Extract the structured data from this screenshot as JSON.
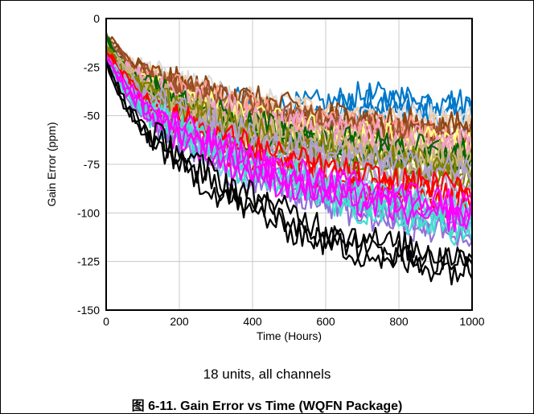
{
  "chart_data": {
    "type": "line",
    "title": "",
    "subtitle": "18 units, all channels",
    "caption": "图 6-11. Gain Error vs Time (WQFN Package)",
    "xlabel": "Time (Hours)",
    "ylabel": "Gain Error (ppm)",
    "xlim": [
      0,
      1000
    ],
    "ylim": [
      -150,
      0
    ],
    "xticks": [
      0,
      200,
      400,
      600,
      800,
      1000
    ],
    "yticks": [
      0,
      -25,
      -50,
      -75,
      -100,
      -125,
      -150
    ],
    "grid": true,
    "series_count": 54,
    "series": [
      {
        "color": "#0077c8",
        "values": [
          [
            0,
            -12
          ],
          [
            50,
            -22
          ],
          [
            100,
            -30
          ],
          [
            200,
            -38
          ],
          [
            300,
            -44
          ],
          [
            400,
            -48
          ],
          [
            500,
            -50
          ],
          [
            600,
            -48
          ],
          [
            700,
            -44
          ],
          [
            800,
            -45
          ],
          [
            900,
            -46
          ],
          [
            1000,
            -48
          ]
        ]
      },
      {
        "color": "#dcdcdc",
        "values": [
          [
            0,
            -10
          ],
          [
            50,
            -20
          ],
          [
            100,
            -27
          ],
          [
            200,
            -35
          ],
          [
            300,
            -42
          ],
          [
            400,
            -46
          ],
          [
            500,
            -50
          ],
          [
            600,
            -52
          ],
          [
            700,
            -54
          ],
          [
            800,
            -54
          ],
          [
            900,
            -55
          ],
          [
            1000,
            -56
          ]
        ]
      },
      {
        "color": "#f5c89a",
        "values": [
          [
            0,
            -12
          ],
          [
            50,
            -22
          ],
          [
            100,
            -29
          ],
          [
            200,
            -37
          ],
          [
            300,
            -43
          ],
          [
            400,
            -47
          ],
          [
            500,
            -51
          ],
          [
            600,
            -54
          ],
          [
            700,
            -56
          ],
          [
            800,
            -58
          ],
          [
            900,
            -60
          ],
          [
            1000,
            -61
          ]
        ]
      },
      {
        "color": "#8b4513",
        "values": [
          [
            0,
            -8
          ],
          [
            50,
            -20
          ],
          [
            100,
            -28
          ],
          [
            200,
            -36
          ],
          [
            300,
            -42
          ],
          [
            400,
            -46
          ],
          [
            500,
            -50
          ],
          [
            600,
            -53
          ],
          [
            700,
            -55
          ],
          [
            800,
            -57
          ],
          [
            900,
            -59
          ],
          [
            1000,
            -60
          ]
        ]
      },
      {
        "color": "#ff9a8a",
        "values": [
          [
            0,
            -14
          ],
          [
            50,
            -24
          ],
          [
            100,
            -31
          ],
          [
            200,
            -39
          ],
          [
            300,
            -45
          ],
          [
            400,
            -50
          ],
          [
            500,
            -54
          ],
          [
            600,
            -57
          ],
          [
            700,
            -59
          ],
          [
            800,
            -61
          ],
          [
            900,
            -63
          ],
          [
            1000,
            -64
          ]
        ]
      },
      {
        "color": "#a0522d",
        "values": [
          [
            0,
            -10
          ],
          [
            50,
            -22
          ],
          [
            100,
            -30
          ],
          [
            200,
            -39
          ],
          [
            300,
            -45
          ],
          [
            400,
            -50
          ],
          [
            500,
            -54
          ],
          [
            600,
            -57
          ],
          [
            700,
            -60
          ],
          [
            800,
            -62
          ],
          [
            900,
            -63
          ],
          [
            1000,
            -65
          ]
        ]
      },
      {
        "color": "#ffff80",
        "values": [
          [
            0,
            -14
          ],
          [
            50,
            -26
          ],
          [
            100,
            -34
          ],
          [
            200,
            -43
          ],
          [
            300,
            -50
          ],
          [
            400,
            -55
          ],
          [
            500,
            -59
          ],
          [
            600,
            -62
          ],
          [
            700,
            -64
          ],
          [
            800,
            -66
          ],
          [
            900,
            -67
          ],
          [
            1000,
            -68
          ]
        ]
      },
      {
        "color": "#f0a0c8",
        "values": [
          [
            0,
            -12
          ],
          [
            50,
            -25
          ],
          [
            100,
            -33
          ],
          [
            200,
            -42
          ],
          [
            300,
            -49
          ],
          [
            400,
            -54
          ],
          [
            500,
            -58
          ],
          [
            600,
            -61
          ],
          [
            700,
            -63
          ],
          [
            800,
            -65
          ],
          [
            900,
            -67
          ],
          [
            1000,
            -68
          ]
        ]
      },
      {
        "color": "#006400",
        "values": [
          [
            0,
            -10
          ],
          [
            50,
            -26
          ],
          [
            100,
            -35
          ],
          [
            200,
            -45
          ],
          [
            300,
            -52
          ],
          [
            400,
            -58
          ],
          [
            500,
            -62
          ],
          [
            600,
            -66
          ],
          [
            700,
            -68
          ],
          [
            800,
            -70
          ],
          [
            900,
            -72
          ],
          [
            1000,
            -73
          ]
        ]
      },
      {
        "color": "#c8b478",
        "values": [
          [
            0,
            -15
          ],
          [
            50,
            -27
          ],
          [
            100,
            -36
          ],
          [
            200,
            -46
          ],
          [
            300,
            -53
          ],
          [
            400,
            -59
          ],
          [
            500,
            -63
          ],
          [
            600,
            -67
          ],
          [
            700,
            -70
          ],
          [
            800,
            -72
          ],
          [
            900,
            -74
          ],
          [
            1000,
            -75
          ]
        ]
      },
      {
        "color": "#808000",
        "values": [
          [
            0,
            -15
          ],
          [
            50,
            -28
          ],
          [
            100,
            -38
          ],
          [
            200,
            -48
          ],
          [
            300,
            -56
          ],
          [
            400,
            -62
          ],
          [
            500,
            -67
          ],
          [
            600,
            -71
          ],
          [
            700,
            -74
          ],
          [
            800,
            -77
          ],
          [
            900,
            -79
          ],
          [
            1000,
            -80
          ]
        ]
      },
      {
        "color": "#b0a0d0",
        "values": [
          [
            0,
            -18
          ],
          [
            50,
            -30
          ],
          [
            100,
            -40
          ],
          [
            200,
            -50
          ],
          [
            300,
            -58
          ],
          [
            400,
            -64
          ],
          [
            500,
            -69
          ],
          [
            600,
            -73
          ],
          [
            700,
            -76
          ],
          [
            800,
            -79
          ],
          [
            900,
            -81
          ],
          [
            1000,
            -82
          ]
        ]
      },
      {
        "color": "#ff0000",
        "values": [
          [
            0,
            -16
          ],
          [
            50,
            -32
          ],
          [
            100,
            -42
          ],
          [
            200,
            -54
          ],
          [
            300,
            -63
          ],
          [
            400,
            -70
          ],
          [
            500,
            -76
          ],
          [
            600,
            -81
          ],
          [
            700,
            -85
          ],
          [
            800,
            -88
          ],
          [
            900,
            -90
          ],
          [
            1000,
            -92
          ]
        ]
      },
      {
        "color": "#87ceeb",
        "values": [
          [
            0,
            -20
          ],
          [
            50,
            -34
          ],
          [
            100,
            -45
          ],
          [
            200,
            -58
          ],
          [
            300,
            -68
          ],
          [
            400,
            -76
          ],
          [
            500,
            -82
          ],
          [
            600,
            -88
          ],
          [
            700,
            -92
          ],
          [
            800,
            -96
          ],
          [
            900,
            -99
          ],
          [
            1000,
            -101
          ]
        ]
      },
      {
        "color": "#9370db",
        "values": [
          [
            0,
            -20
          ],
          [
            50,
            -36
          ],
          [
            100,
            -48
          ],
          [
            200,
            -61
          ],
          [
            300,
            -71
          ],
          [
            400,
            -79
          ],
          [
            500,
            -86
          ],
          [
            600,
            -92
          ],
          [
            700,
            -97
          ],
          [
            800,
            -101
          ],
          [
            900,
            -105
          ],
          [
            1000,
            -108
          ]
        ]
      },
      {
        "color": "#40e0d0",
        "values": [
          [
            0,
            -22
          ],
          [
            50,
            -35
          ],
          [
            100,
            -46
          ],
          [
            200,
            -59
          ],
          [
            300,
            -69
          ],
          [
            400,
            -77
          ],
          [
            500,
            -84
          ],
          [
            600,
            -90
          ],
          [
            700,
            -95
          ],
          [
            800,
            -99
          ],
          [
            900,
            -103
          ],
          [
            1000,
            -106
          ]
        ]
      },
      {
        "color": "#ff00ff",
        "values": [
          [
            0,
            -20
          ],
          [
            50,
            -34
          ],
          [
            100,
            -45
          ],
          [
            200,
            -58
          ],
          [
            300,
            -68
          ],
          [
            400,
            -76
          ],
          [
            500,
            -82
          ],
          [
            600,
            -87
          ],
          [
            700,
            -91
          ],
          [
            800,
            -94
          ],
          [
            900,
            -97
          ],
          [
            1000,
            -99
          ]
        ]
      },
      {
        "color": "#000000",
        "values": [
          [
            0,
            -22
          ],
          [
            50,
            -44
          ],
          [
            100,
            -56
          ],
          [
            200,
            -72
          ],
          [
            300,
            -85
          ],
          [
            400,
            -95
          ],
          [
            500,
            -104
          ],
          [
            600,
            -111
          ],
          [
            700,
            -117
          ],
          [
            800,
            -121
          ],
          [
            900,
            -124
          ],
          [
            1000,
            -126
          ]
        ]
      }
    ]
  }
}
